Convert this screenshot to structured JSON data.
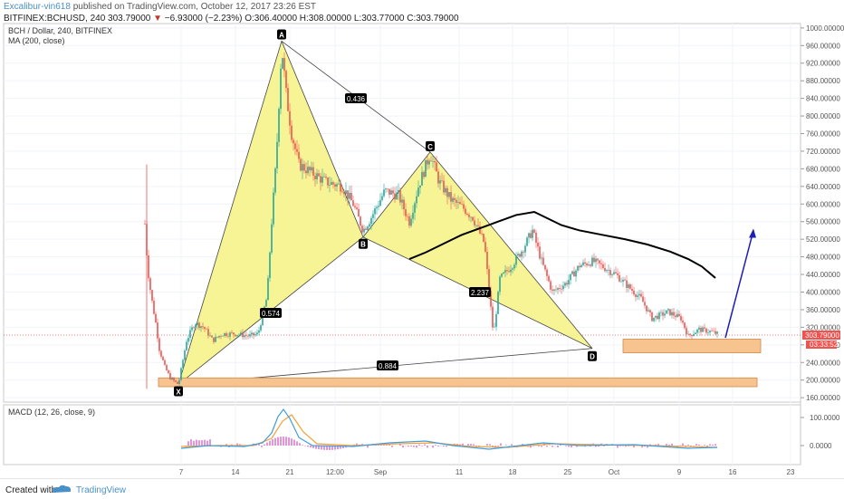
{
  "header": {
    "author": "Excalibur-vin618",
    "published": "published on TradingView.com, October 12, 2017 23:26 EST",
    "symbol_line": "BITFINEX:BCHUSD, 240",
    "last": "303.79000",
    "change": "−6.93000 (−2.23%)",
    "ohlc": "O:306.40000 H:308.00000 L:303.77000 C:303.79000"
  },
  "legend": {
    "title": "BCH / Dollar, 240, BITFINEX",
    "ma": "MA (200, close)",
    "macd": "MACD (12, 26, close, 9)"
  },
  "price_label": "303.79000",
  "time_label": "03:33:52",
  "footer": {
    "created": "Created with",
    "brand": "TradingView"
  },
  "colors": {
    "pattern_fill": "#f6f38a",
    "zone": "#f7c48f",
    "up": "#26a69a",
    "down": "#ef5350",
    "arrow": "#1f1fb3",
    "ma": "#000000",
    "macd": "#3f9dd9",
    "signal": "#f4a13a",
    "hist": "#e07ad0"
  },
  "chart_data": {
    "type": "candlestick",
    "price_ylim": [
      150,
      1010
    ],
    "y_ticks": [
      160,
      200,
      240,
      280,
      320,
      360,
      400,
      440,
      480,
      520,
      560,
      600,
      640,
      680,
      720,
      760,
      800,
      840,
      880,
      920,
      960,
      1000
    ],
    "x_ticks": [
      "7",
      "14",
      "21",
      "12:00",
      "Sep",
      "11",
      "18",
      "25",
      "Oct",
      "9",
      "16",
      "23"
    ],
    "harmonic_points": [
      {
        "label": "X",
        "price": 190
      },
      {
        "label": "A",
        "price": 970
      },
      {
        "label": "B",
        "price": 525
      },
      {
        "label": "C",
        "price": 718
      },
      {
        "label": "D",
        "price": 272
      }
    ],
    "ratios": [
      "0.436",
      "0.574",
      "2.237",
      "0.884"
    ],
    "zones": [
      [
        185,
        205
      ],
      [
        262,
        293
      ]
    ],
    "macd_ticks": [
      "100.0000",
      "0.0000"
    ]
  }
}
